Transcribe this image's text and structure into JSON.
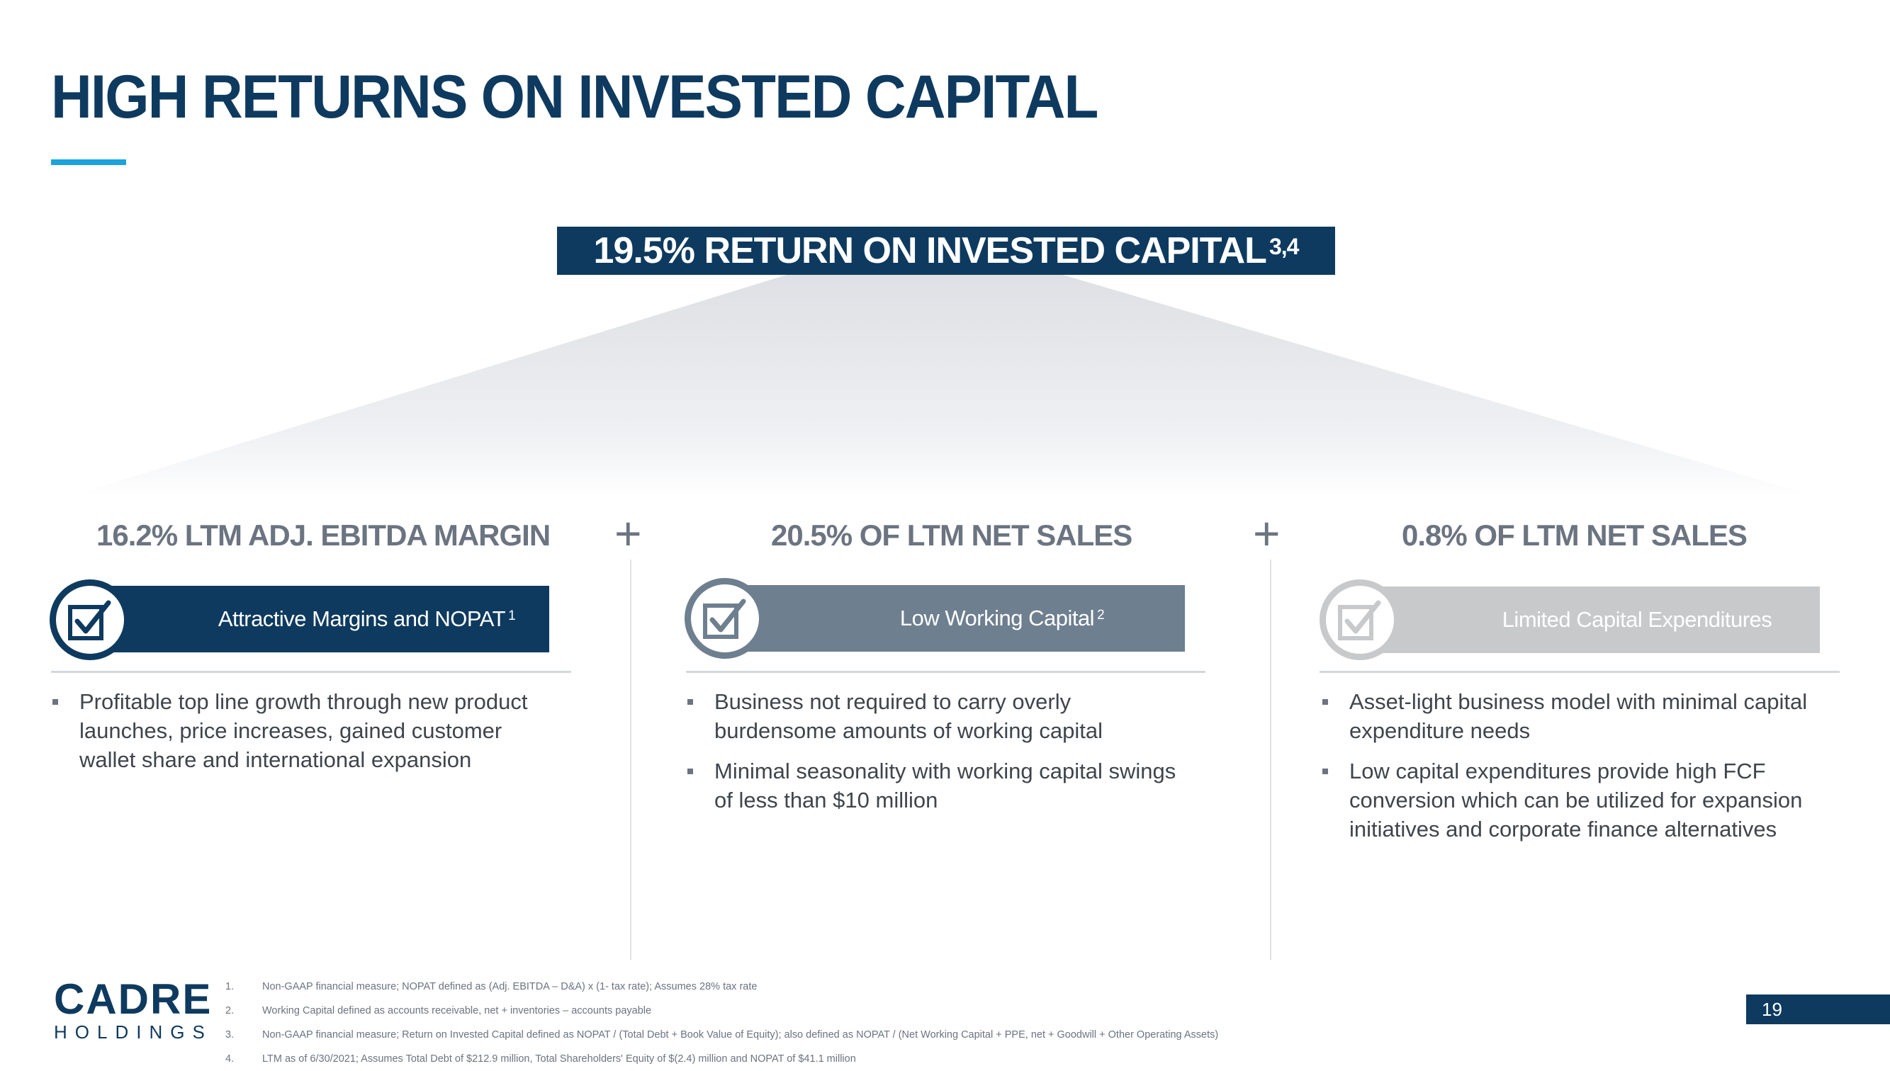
{
  "page": {
    "title": "HIGH RETURNS ON INVESTED CAPITAL",
    "page_number": "19"
  },
  "summary": {
    "banner": "19.5% RETURN ON INVESTED CAPITAL",
    "banner_superscript": "3,4"
  },
  "columns": [
    {
      "heading": "16.2% LTM ADJ. EBITDA MARGIN",
      "badge_label": "Attractive Margins and NOPAT",
      "badge_superscript": "1",
      "badge_color": "#0e3a5f",
      "bullets": [
        "Profitable top line growth through new product launches, price increases, gained customer wallet share and international expansion"
      ]
    },
    {
      "heading": "20.5% OF LTM NET SALES",
      "badge_label": "Low Working Capital",
      "badge_superscript": "2",
      "badge_color": "#6e7f8f",
      "bullets": [
        "Business not required to carry overly burdensome amounts of working capital",
        "Minimal seasonality with working capital swings of less than $10 million"
      ]
    },
    {
      "heading": "0.8% OF LTM NET SALES",
      "badge_label": "Limited Capital Expenditures",
      "badge_superscript": "",
      "badge_color": "#c8c9cb",
      "bullets": [
        "Asset-light business model with minimal capital expenditure needs",
        "Low capital expenditures provide high FCF conversion which can be utilized for expansion initiatives and corporate finance alternatives"
      ]
    }
  ],
  "operators": {
    "plus_1": "+",
    "plus_2": "+"
  },
  "icons": {
    "badge_icon": "checkbox-check-icon"
  },
  "logo": {
    "word": "CADRE",
    "sub": "HOLDINGS"
  },
  "footnotes": [
    {
      "num": "1.",
      "text": "Non-GAAP financial measure; NOPAT defined as (Adj. EBITDA – D&A) x (1- tax rate); Assumes 28% tax rate"
    },
    {
      "num": "2.",
      "text": "Working Capital defined as accounts receivable, net + inventories – accounts payable"
    },
    {
      "num": "3.",
      "text": "Non-GAAP financial measure; Return on Invested Capital defined as NOPAT / (Total Debt + Book Value of Equity); also defined as NOPAT / (Net Working Capital + PPE, net + Goodwill + Other Operating Assets)"
    },
    {
      "num": "4.",
      "text": "LTM as of 6/30/2021; Assumes Total Debt of $212.9 million, Total Shareholders' Equity of $(2.4) million and NOPAT of $41.1 million"
    }
  ],
  "colors": {
    "navy": "#0e3a5f",
    "accent_blue": "#1aa3dd",
    "slate": "#6e7f8f",
    "light_gray": "#c8c9cb",
    "heading_gray": "#6b7480"
  }
}
